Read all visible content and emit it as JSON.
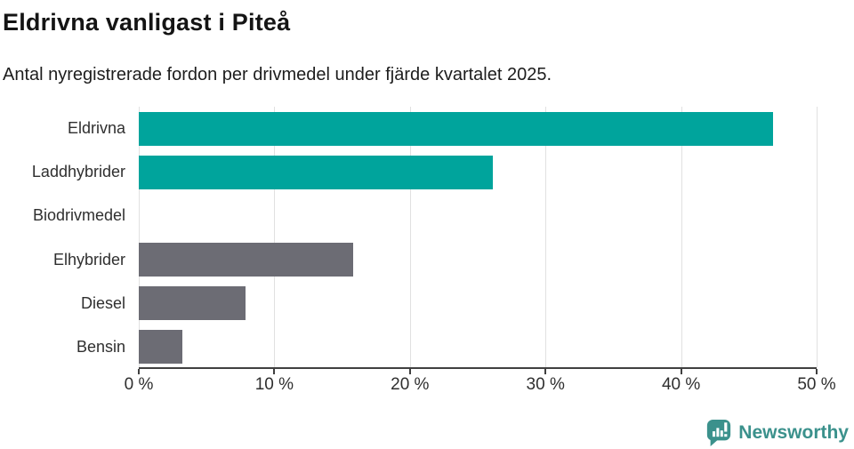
{
  "header": {
    "title": "Eldrivna vanligast i Piteå",
    "subtitle": "Antal nyregistrerade fordon per drivmedel under fjärde kvartalet 2025."
  },
  "chart_data": {
    "type": "bar",
    "orientation": "horizontal",
    "title": "Eldrivna vanligast i Piteå",
    "subtitle": "Antal nyregistrerade fordon per drivmedel under fjärde kvartalet 2025.",
    "categories": [
      "Eldrivna",
      "Laddhybrider",
      "Biodrivmedel",
      "Elhybrider",
      "Diesel",
      "Bensin"
    ],
    "values": [
      46.8,
      26.1,
      0,
      15.8,
      7.9,
      3.2
    ],
    "unit": "%",
    "xlim": [
      0,
      50
    ],
    "x_ticks": [
      0,
      10,
      20,
      30,
      40,
      50
    ],
    "x_tick_labels": [
      "0 %",
      "10 %",
      "20 %",
      "30 %",
      "40 %",
      "50 %"
    ],
    "grid": "vertical-only",
    "legend": "none",
    "bar_colors": [
      "#00a49c",
      "#00a49c",
      "#00a49c",
      "#6c6c74",
      "#6c6c74",
      "#6c6c74"
    ],
    "highlight_color": "#00a49c",
    "default_color": "#6c6c74",
    "axis_color": "#404040",
    "gridline_color": "#e1e1e1"
  },
  "footer": {
    "brand": "Newsworthy",
    "brand_color": "#3b918c",
    "logo_icon": "speech-bubble-bar-chart-exclamation"
  }
}
